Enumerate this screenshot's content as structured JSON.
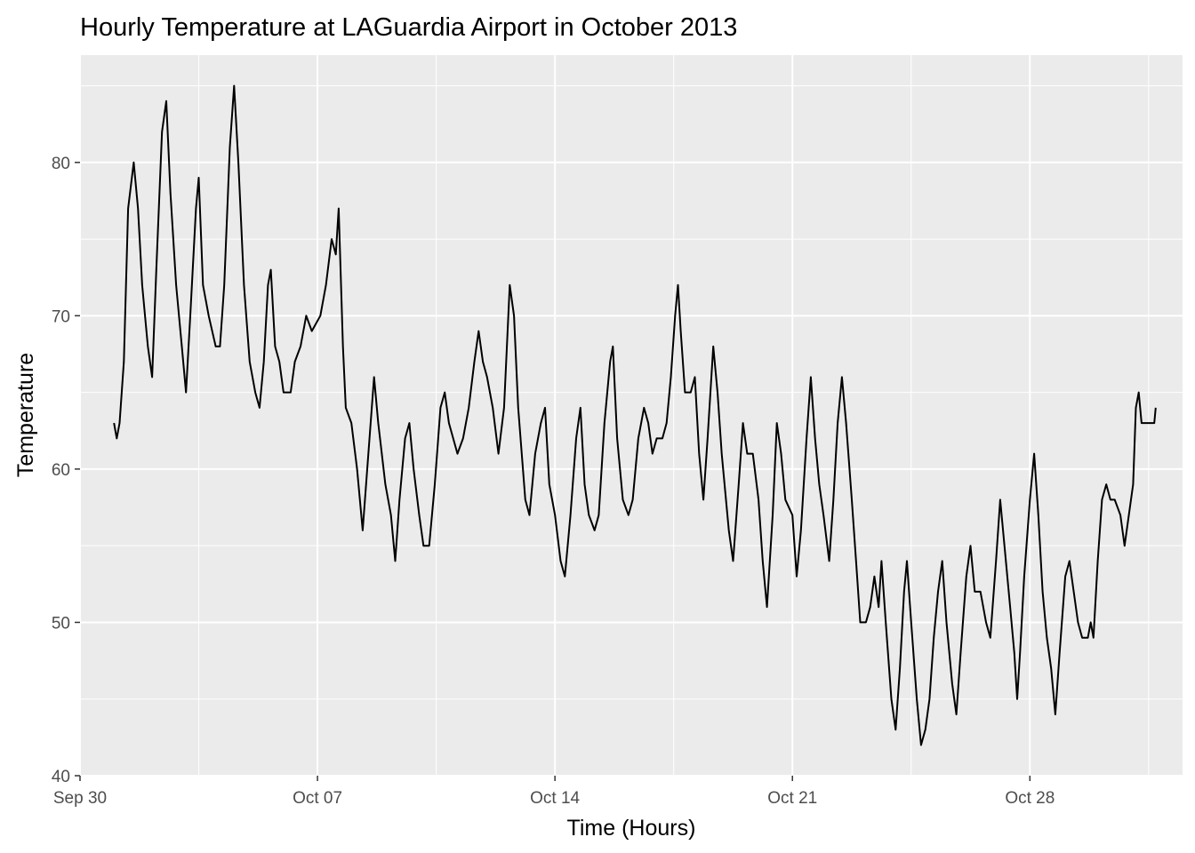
{
  "chart_data": {
    "type": "line",
    "title": "Hourly Temperature at LAGuardia Airport in October 2013",
    "xlabel": "Time (Hours)",
    "ylabel": "Temperature",
    "xlim": [
      "2013-09-30T00:00",
      "2013-11-01T12:00"
    ],
    "ylim": [
      40,
      87
    ],
    "x_ticks": [
      {
        "date": "2013-09-30T00:00",
        "label": "Sep 30"
      },
      {
        "date": "2013-10-07T00:00",
        "label": "Oct 07"
      },
      {
        "date": "2013-10-14T00:00",
        "label": "Oct 14"
      },
      {
        "date": "2013-10-21T00:00",
        "label": "Oct 21"
      },
      {
        "date": "2013-10-28T00:00",
        "label": "Oct 28"
      }
    ],
    "y_ticks": [
      40,
      50,
      60,
      70,
      80
    ],
    "grid": true,
    "line_color": "#000000",
    "background": "#ebebeb",
    "series": [
      {
        "points": [
          [
            "2013-10-01T00:00",
            63
          ],
          [
            "2013-10-01T02:00",
            62
          ],
          [
            "2013-10-01T04:00",
            63
          ],
          [
            "2013-10-01T07:00",
            67
          ],
          [
            "2013-10-01T10:00",
            77
          ],
          [
            "2013-10-01T14:00",
            80
          ],
          [
            "2013-10-01T17:00",
            77
          ],
          [
            "2013-10-01T20:00",
            72
          ],
          [
            "2013-10-02T00:00",
            68
          ],
          [
            "2013-10-02T03:00",
            66
          ],
          [
            "2013-10-02T06:00",
            73
          ],
          [
            "2013-10-02T10:00",
            82
          ],
          [
            "2013-10-02T13:00",
            84
          ],
          [
            "2013-10-02T16:00",
            78
          ],
          [
            "2013-10-02T20:00",
            72
          ],
          [
            "2013-10-03T00:00",
            68
          ],
          [
            "2013-10-03T03:00",
            65
          ],
          [
            "2013-10-03T06:00",
            70
          ],
          [
            "2013-10-03T10:00",
            77
          ],
          [
            "2013-10-03T12:00",
            79
          ],
          [
            "2013-10-03T15:00",
            72
          ],
          [
            "2013-10-03T19:00",
            70
          ],
          [
            "2013-10-04T00:00",
            68
          ],
          [
            "2013-10-04T03:00",
            68
          ],
          [
            "2013-10-04T06:00",
            72
          ],
          [
            "2013-10-04T10:00",
            81
          ],
          [
            "2013-10-04T13:00",
            85
          ],
          [
            "2013-10-04T16:00",
            80
          ],
          [
            "2013-10-04T20:00",
            72
          ],
          [
            "2013-10-05T00:00",
            67
          ],
          [
            "2013-10-05T04:00",
            65
          ],
          [
            "2013-10-05T07:00",
            64
          ],
          [
            "2013-10-05T10:00",
            67
          ],
          [
            "2013-10-05T13:00",
            72
          ],
          [
            "2013-10-05T15:00",
            73
          ],
          [
            "2013-10-05T18:00",
            68
          ],
          [
            "2013-10-05T21:00",
            67
          ],
          [
            "2013-10-06T00:00",
            65
          ],
          [
            "2013-10-06T05:00",
            65
          ],
          [
            "2013-10-06T08:00",
            67
          ],
          [
            "2013-10-06T12:00",
            68
          ],
          [
            "2013-10-06T16:00",
            70
          ],
          [
            "2013-10-06T20:00",
            69
          ],
          [
            "2013-10-07T02:00",
            70
          ],
          [
            "2013-10-07T06:00",
            72
          ],
          [
            "2013-10-07T10:00",
            75
          ],
          [
            "2013-10-07T13:00",
            74
          ],
          [
            "2013-10-07T15:00",
            77
          ],
          [
            "2013-10-07T18:00",
            68
          ],
          [
            "2013-10-07T20:00",
            64
          ],
          [
            "2013-10-08T00:00",
            63
          ],
          [
            "2013-10-08T04:00",
            60
          ],
          [
            "2013-10-08T08:00",
            56
          ],
          [
            "2013-10-08T12:00",
            61
          ],
          [
            "2013-10-08T16:00",
            66
          ],
          [
            "2013-10-08T19:00",
            63
          ],
          [
            "2013-10-09T00:00",
            59
          ],
          [
            "2013-10-09T04:00",
            57
          ],
          [
            "2013-10-09T07:00",
            54
          ],
          [
            "2013-10-09T10:00",
            58
          ],
          [
            "2013-10-09T14:00",
            62
          ],
          [
            "2013-10-09T17:00",
            63
          ],
          [
            "2013-10-09T20:00",
            60
          ],
          [
            "2013-10-10T00:00",
            57
          ],
          [
            "2013-10-10T03:00",
            55
          ],
          [
            "2013-10-10T07:00",
            55
          ],
          [
            "2013-10-10T11:00",
            59
          ],
          [
            "2013-10-10T15:00",
            64
          ],
          [
            "2013-10-10T18:00",
            65
          ],
          [
            "2013-10-10T21:00",
            63
          ],
          [
            "2013-10-11T00:00",
            62
          ],
          [
            "2013-10-11T03:00",
            61
          ],
          [
            "2013-10-11T07:00",
            62
          ],
          [
            "2013-10-11T11:00",
            64
          ],
          [
            "2013-10-11T15:00",
            67
          ],
          [
            "2013-10-11T18:00",
            69
          ],
          [
            "2013-10-11T21:00",
            67
          ],
          [
            "2013-10-12T00:00",
            66
          ],
          [
            "2013-10-12T04:00",
            64
          ],
          [
            "2013-10-12T08:00",
            61
          ],
          [
            "2013-10-12T12:00",
            64
          ],
          [
            "2013-10-12T16:00",
            72
          ],
          [
            "2013-10-12T19:00",
            70
          ],
          [
            "2013-10-12T22:00",
            64
          ],
          [
            "2013-10-13T03:00",
            58
          ],
          [
            "2013-10-13T06:00",
            57
          ],
          [
            "2013-10-13T10:00",
            61
          ],
          [
            "2013-10-13T14:00",
            63
          ],
          [
            "2013-10-13T17:00",
            64
          ],
          [
            "2013-10-13T20:00",
            59
          ],
          [
            "2013-10-14T00:00",
            57
          ],
          [
            "2013-10-14T04:00",
            54
          ],
          [
            "2013-10-14T07:00",
            53
          ],
          [
            "2013-10-14T11:00",
            57
          ],
          [
            "2013-10-14T15:00",
            62
          ],
          [
            "2013-10-14T18:00",
            64
          ],
          [
            "2013-10-14T21:00",
            59
          ],
          [
            "2013-10-15T00:00",
            57
          ],
          [
            "2013-10-15T04:00",
            56
          ],
          [
            "2013-10-15T07:00",
            57
          ],
          [
            "2013-10-15T11:00",
            63
          ],
          [
            "2013-10-15T15:00",
            67
          ],
          [
            "2013-10-15T17:00",
            68
          ],
          [
            "2013-10-15T20:00",
            62
          ],
          [
            "2013-10-16T00:00",
            58
          ],
          [
            "2013-10-16T04:00",
            57
          ],
          [
            "2013-10-16T07:00",
            58
          ],
          [
            "2013-10-16T11:00",
            62
          ],
          [
            "2013-10-16T15:00",
            64
          ],
          [
            "2013-10-16T18:00",
            63
          ],
          [
            "2013-10-16T21:00",
            61
          ],
          [
            "2013-10-17T00:00",
            62
          ],
          [
            "2013-10-17T04:00",
            62
          ],
          [
            "2013-10-17T07:00",
            63
          ],
          [
            "2013-10-17T10:00",
            66
          ],
          [
            "2013-10-17T13:00",
            70
          ],
          [
            "2013-10-17T15:00",
            72
          ],
          [
            "2013-10-17T17:00",
            69
          ],
          [
            "2013-10-17T20:00",
            65
          ],
          [
            "2013-10-18T00:00",
            65
          ],
          [
            "2013-10-18T03:00",
            66
          ],
          [
            "2013-10-18T06:00",
            61
          ],
          [
            "2013-10-18T09:00",
            58
          ],
          [
            "2013-10-18T12:00",
            62
          ],
          [
            "2013-10-18T16:00",
            68
          ],
          [
            "2013-10-18T19:00",
            65
          ],
          [
            "2013-10-18T22:00",
            61
          ],
          [
            "2013-10-19T03:00",
            56
          ],
          [
            "2013-10-19T06:00",
            54
          ],
          [
            "2013-10-19T10:00",
            59
          ],
          [
            "2013-10-19T13:00",
            63
          ],
          [
            "2013-10-19T16:00",
            61
          ],
          [
            "2013-10-19T20:00",
            61
          ],
          [
            "2013-10-20T00:00",
            58
          ],
          [
            "2013-10-20T03:00",
            54
          ],
          [
            "2013-10-20T06:00",
            51
          ],
          [
            "2013-10-20T10:00",
            57
          ],
          [
            "2013-10-20T13:00",
            63
          ],
          [
            "2013-10-20T16:00",
            61
          ],
          [
            "2013-10-20T19:00",
            58
          ],
          [
            "2013-10-21T00:00",
            57
          ],
          [
            "2013-10-21T03:00",
            53
          ],
          [
            "2013-10-21T06:00",
            56
          ],
          [
            "2013-10-21T10:00",
            62
          ],
          [
            "2013-10-21T13:00",
            66
          ],
          [
            "2013-10-21T16:00",
            62
          ],
          [
            "2013-10-21T19:00",
            59
          ],
          [
            "2013-10-21T22:00",
            57
          ],
          [
            "2013-10-22T02:00",
            54
          ],
          [
            "2013-10-22T05:00",
            58
          ],
          [
            "2013-10-22T08:00",
            63
          ],
          [
            "2013-10-22T11:00",
            66
          ],
          [
            "2013-10-22T14:00",
            63
          ],
          [
            "2013-10-22T18:00",
            58
          ],
          [
            "2013-10-22T21:00",
            54
          ],
          [
            "2013-10-23T00:00",
            50
          ],
          [
            "2013-10-23T04:00",
            50
          ],
          [
            "2013-10-23T07:00",
            51
          ],
          [
            "2013-10-23T10:00",
            53
          ],
          [
            "2013-10-23T13:00",
            51
          ],
          [
            "2013-10-23T15:00",
            54
          ],
          [
            "2013-10-23T18:00",
            50
          ],
          [
            "2013-10-23T22:00",
            45
          ],
          [
            "2013-10-24T01:00",
            43
          ],
          [
            "2013-10-24T04:00",
            47
          ],
          [
            "2013-10-24T07:00",
            52
          ],
          [
            "2013-10-24T09:00",
            54
          ],
          [
            "2013-10-24T12:00",
            50
          ],
          [
            "2013-10-24T16:00",
            45
          ],
          [
            "2013-10-24T19:00",
            42
          ],
          [
            "2013-10-24T22:00",
            43
          ],
          [
            "2013-10-25T01:00",
            45
          ],
          [
            "2013-10-25T04:00",
            49
          ],
          [
            "2013-10-25T07:00",
            52
          ],
          [
            "2013-10-25T10:00",
            54
          ],
          [
            "2013-10-25T13:00",
            50
          ],
          [
            "2013-10-25T17:00",
            46
          ],
          [
            "2013-10-25T20:00",
            44
          ],
          [
            "2013-10-25T23:00",
            48
          ],
          [
            "2013-10-26T03:00",
            53
          ],
          [
            "2013-10-26T06:00",
            55
          ],
          [
            "2013-10-26T09:00",
            52
          ],
          [
            "2013-10-26T13:00",
            52
          ],
          [
            "2013-10-26T17:00",
            50
          ],
          [
            "2013-10-26T20:00",
            49
          ],
          [
            "2013-10-27T00:00",
            54
          ],
          [
            "2013-10-27T03:00",
            58
          ],
          [
            "2013-10-27T06:00",
            55
          ],
          [
            "2013-10-27T10:00",
            51
          ],
          [
            "2013-10-27T13:00",
            48
          ],
          [
            "2013-10-27T15:00",
            45
          ],
          [
            "2013-10-27T17:00",
            48
          ],
          [
            "2013-10-27T20:00",
            53
          ],
          [
            "2013-10-28T00:00",
            58
          ],
          [
            "2013-10-28T03:00",
            61
          ],
          [
            "2013-10-28T06:00",
            57
          ],
          [
            "2013-10-28T09:00",
            52
          ],
          [
            "2013-10-28T12:00",
            49
          ],
          [
            "2013-10-28T15:00",
            47
          ],
          [
            "2013-10-28T18:00",
            44
          ],
          [
            "2013-10-28T21:00",
            48
          ],
          [
            "2013-10-29T01:00",
            53
          ],
          [
            "2013-10-29T04:00",
            54
          ],
          [
            "2013-10-29T07:00",
            52
          ],
          [
            "2013-10-29T10:00",
            50
          ],
          [
            "2013-10-29T13:00",
            49
          ],
          [
            "2013-10-29T17:00",
            49
          ],
          [
            "2013-10-29T19:00",
            50
          ],
          [
            "2013-10-29T21:00",
            49
          ],
          [
            "2013-10-30T00:00",
            54
          ],
          [
            "2013-10-30T03:00",
            58
          ],
          [
            "2013-10-30T06:00",
            59
          ],
          [
            "2013-10-30T09:00",
            58
          ],
          [
            "2013-10-30T12:00",
            58
          ],
          [
            "2013-10-30T16:00",
            57
          ],
          [
            "2013-10-30T19:00",
            55
          ],
          [
            "2013-10-30T22:00",
            57
          ],
          [
            "2013-10-31T01:00",
            59
          ],
          [
            "2013-10-31T03:00",
            64
          ],
          [
            "2013-10-31T05:00",
            65
          ],
          [
            "2013-10-31T07:00",
            63
          ],
          [
            "2013-10-31T10:00",
            63
          ],
          [
            "2013-10-31T13:00",
            63
          ],
          [
            "2013-10-31T16:00",
            63
          ],
          [
            "2013-10-31T17:00",
            64
          ]
        ]
      }
    ]
  }
}
